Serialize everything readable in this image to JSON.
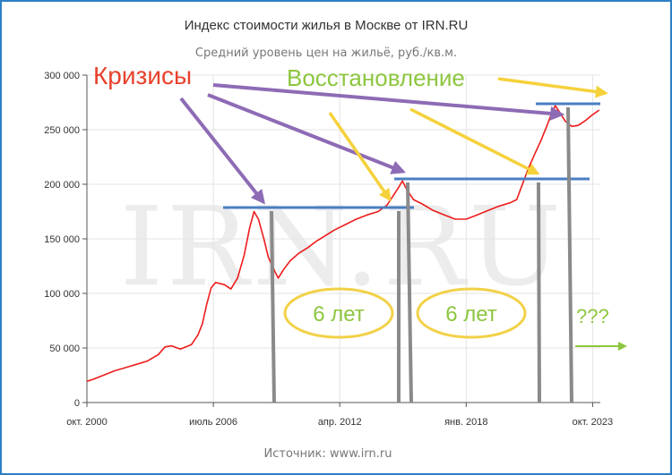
{
  "chart_data": {
    "type": "line",
    "title": "Индекс стоимости жилья в Москве от IRN.RU",
    "subtitle": "Средний уровень цен на жильё, руб./кв.м.",
    "source": "Источник: www.irn.ru",
    "watermark": "IRN.RU",
    "ylim": [
      0,
      300000
    ],
    "y_ticks": [
      {
        "value": 0,
        "label": "0"
      },
      {
        "value": 50000,
        "label": "50 000"
      },
      {
        "value": 100000,
        "label": "100 000"
      },
      {
        "value": 150000,
        "label": "150 000"
      },
      {
        "value": 200000,
        "label": "200 000"
      },
      {
        "value": 250000,
        "label": "250 000"
      },
      {
        "value": 300000,
        "label": "300 000"
      }
    ],
    "xlim": [
      2000.75,
      2024.1
    ],
    "x_ticks": [
      {
        "value": 2000.75,
        "label": "окт. 2000"
      },
      {
        "value": 2006.5,
        "label": "июль 2006"
      },
      {
        "value": 2012.25,
        "label": "апр. 2012"
      },
      {
        "value": 2018.0,
        "label": "янв. 2018"
      },
      {
        "value": 2023.75,
        "label": "окт. 2023"
      }
    ],
    "series": [
      {
        "color": "#ee1c1c",
        "points": [
          [
            2000.75,
            19500
          ],
          [
            2001.0,
            21000
          ],
          [
            2001.5,
            25000
          ],
          [
            2002.0,
            29000
          ],
          [
            2002.5,
            32000
          ],
          [
            2003.0,
            35000
          ],
          [
            2003.5,
            38000
          ],
          [
            2004.0,
            44000
          ],
          [
            2004.3,
            51000
          ],
          [
            2004.6,
            52000
          ],
          [
            2005.0,
            49000
          ],
          [
            2005.5,
            53000
          ],
          [
            2005.8,
            62000
          ],
          [
            2006.0,
            72000
          ],
          [
            2006.2,
            90000
          ],
          [
            2006.4,
            105000
          ],
          [
            2006.6,
            110000
          ],
          [
            2007.0,
            108000
          ],
          [
            2007.3,
            104000
          ],
          [
            2007.6,
            114000
          ],
          [
            2007.9,
            135000
          ],
          [
            2008.15,
            160000
          ],
          [
            2008.35,
            175000
          ],
          [
            2008.55,
            168000
          ],
          [
            2008.8,
            150000
          ],
          [
            2009.0,
            133000
          ],
          [
            2009.3,
            120000
          ],
          [
            2009.45,
            114000
          ],
          [
            2009.7,
            122000
          ],
          [
            2010.0,
            130000
          ],
          [
            2010.4,
            137000
          ],
          [
            2010.8,
            142000
          ],
          [
            2011.2,
            148000
          ],
          [
            2011.6,
            153000
          ],
          [
            2012.0,
            158000
          ],
          [
            2012.5,
            163000
          ],
          [
            2013.0,
            168000
          ],
          [
            2013.5,
            172000
          ],
          [
            2014.0,
            175000
          ],
          [
            2014.4,
            181000
          ],
          [
            2014.7,
            190000
          ],
          [
            2014.95,
            198000
          ],
          [
            2015.1,
            203000
          ],
          [
            2015.3,
            195000
          ],
          [
            2015.6,
            186000
          ],
          [
            2016.0,
            182000
          ],
          [
            2016.5,
            176000
          ],
          [
            2017.0,
            172000
          ],
          [
            2017.5,
            168000
          ],
          [
            2018.0,
            168000
          ],
          [
            2018.5,
            172000
          ],
          [
            2019.0,
            176000
          ],
          [
            2019.5,
            180000
          ],
          [
            2020.0,
            183000
          ],
          [
            2020.3,
            186000
          ],
          [
            2020.5,
            197000
          ],
          [
            2020.8,
            213000
          ],
          [
            2021.1,
            227000
          ],
          [
            2021.4,
            240000
          ],
          [
            2021.7,
            255000
          ],
          [
            2021.9,
            266000
          ],
          [
            2022.05,
            272000
          ],
          [
            2022.25,
            266000
          ],
          [
            2022.5,
            258000
          ],
          [
            2022.8,
            253000
          ],
          [
            2023.1,
            254000
          ],
          [
            2023.4,
            258000
          ],
          [
            2023.7,
            263000
          ],
          [
            2024.05,
            268000
          ]
        ]
      }
    ]
  },
  "annotations": {
    "crises_label": "Кризисы",
    "recovery_label": "Восстановление",
    "period1_label": "6 лет",
    "period2_label": "6 лет",
    "future_label": "???",
    "colors": {
      "crises": "#e8412c",
      "recovery": "#8dc63f",
      "crisis_arrow": "#8e6bb5",
      "recovery_arrow": "#f5d13b",
      "level_line": "#4a7ec2",
      "drop_line": "#8a8a8a",
      "ellipse": "#f2d147",
      "future_arrow": "#8dc63f"
    }
  }
}
